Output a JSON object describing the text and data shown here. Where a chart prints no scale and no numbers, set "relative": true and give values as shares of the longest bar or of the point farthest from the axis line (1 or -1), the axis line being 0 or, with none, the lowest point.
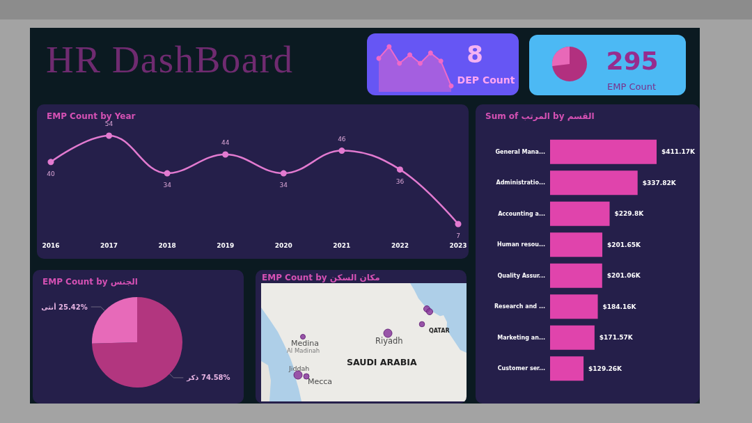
{
  "chart_data": [
    {
      "type": "other",
      "title": "HR DashBoard"
    },
    {
      "type": "area",
      "relative": true,
      "categories": [
        null,
        null,
        null,
        null,
        null,
        null,
        null,
        null
      ],
      "values": [
        0.74,
        1,
        0.63,
        0.82,
        0.63,
        0.86,
        0.68,
        0.13
      ],
      "color": "#f06ac8",
      "marker": "circle"
    },
    {
      "type": "other",
      "title": "DEP Count",
      "annotations": [
        "8"
      ]
    },
    {
      "type": "other",
      "title": "EMP Count",
      "annotations": [
        "295"
      ]
    },
    {
      "type": "line",
      "title": "EMP Count by Year",
      "categories": [
        "2016",
        "2017",
        "2018",
        "2019",
        "2020",
        "2021",
        "2022",
        "2023"
      ],
      "values": [
        40,
        54,
        34,
        44,
        34,
        46,
        36,
        7
      ],
      "color": "#e27ad0",
      "data_labels": true,
      "marker": "circle",
      "grid": false
    },
    {
      "type": "bar",
      "orientation": "horizontal",
      "title": "Sum of المرتب by القسم",
      "categories": [
        "General Mana...",
        "Administratio...",
        "Accounting a...",
        "Human resou...",
        "Quality Assur...",
        "Research and ...",
        "Marketing an...",
        "Customer ser..."
      ],
      "values": [
        411.17,
        337.82,
        229.8,
        201.65,
        201.06,
        184.16,
        171.57,
        129.26
      ],
      "value_labels": [
        "$411.17K",
        "$337.82K",
        "$229.8K",
        "$201.65K",
        "$201.06K",
        "$184.16K",
        "$171.57K",
        "$129.26K"
      ],
      "color": "#e044ac"
    },
    {
      "type": "pie",
      "title": "EMP Count by الجنس",
      "categories": [
        "ذكر",
        "أنثى"
      ],
      "values": [
        74.58,
        25.42
      ],
      "value_labels": [
        "74.58%",
        "25.42%"
      ],
      "colors": [
        "#b2367f",
        "#e76ab9"
      ]
    },
    {
      "type": "other",
      "title": "EMP Count by مكان السكن",
      "annotations": [
        "Medina",
        "Al Madinah",
        "Jiddah",
        "Mecca",
        "Riyadh",
        "SAUDI ARABIA",
        "QATAR"
      ]
    }
  ]
}
